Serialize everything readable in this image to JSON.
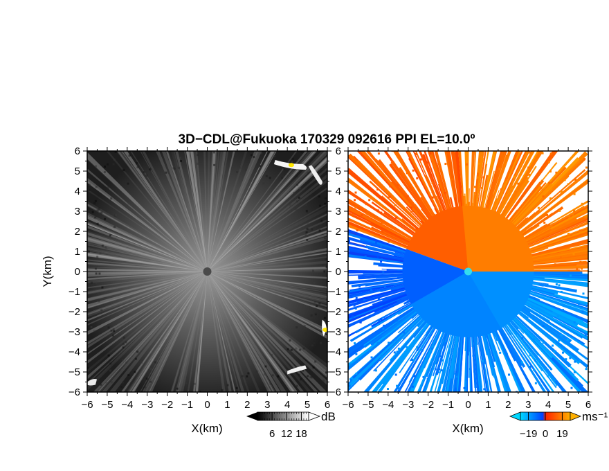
{
  "figure": {
    "title": "3D−CDL@Fukuoka 170329 092616 PPI EL=10.0º"
  },
  "chart_data": [
    {
      "type": "heatmap",
      "quantity": "backscatter intensity",
      "xlabel": "X(km)",
      "ylabel": "Y(km)",
      "xlim": [
        -6,
        6
      ],
      "ylim": [
        -6,
        6
      ],
      "xticks": [
        "−6",
        "−5",
        "−4",
        "−3",
        "−2",
        "−1",
        "0",
        "1",
        "2",
        "3",
        "4",
        "5",
        "6"
      ],
      "yticks": [
        "6",
        "5",
        "4",
        "3",
        "2",
        "1",
        "0",
        "−1",
        "−2",
        "−3",
        "−4",
        "−5",
        "−6"
      ],
      "colorbar": {
        "unit": "dB",
        "range": [
          0,
          21
        ],
        "ticks": [
          6,
          12,
          18
        ],
        "tick_labels": [
          "6",
          "12",
          "18"
        ],
        "colors": [
          "#000000",
          "#ffffff"
        ],
        "extend": "both"
      },
      "features": {
        "radar_center": [
          0,
          0
        ],
        "high_echo_patches": [
          {
            "x": 4.2,
            "y": 5.3,
            "color": "#ffe600"
          },
          {
            "x": 5.9,
            "y": -2.9,
            "color": "#ffe600"
          }
        ]
      }
    },
    {
      "type": "heatmap",
      "quantity": "Doppler velocity",
      "xlabel": "X(km)",
      "ylabel": "",
      "xlim": [
        -6,
        6
      ],
      "ylim": [
        -6,
        6
      ],
      "xticks": [
        "−6",
        "−5",
        "−4",
        "−3",
        "−2",
        "−1",
        "0",
        "1",
        "2",
        "3",
        "4",
        "5",
        "6"
      ],
      "yticks": [
        "6",
        "5",
        "4",
        "3",
        "2",
        "1",
        "0",
        "−1",
        "−2",
        "−3",
        "−4",
        "−5",
        "−6"
      ],
      "colorbar": {
        "unit": "ms⁻¹",
        "range": [
          -28,
          28
        ],
        "ticks": [
          -19,
          0,
          19
        ],
        "tick_labels": [
          "−19",
          "0",
          "19"
        ],
        "colors": [
          "#00d8ff",
          "#0040ff",
          "#ff2000",
          "#ffb000"
        ],
        "extend": "both"
      },
      "features": {
        "radar_center": [
          0,
          0
        ],
        "sectors": [
          {
            "from_deg": 95,
            "to_deg": 160,
            "velocity": 12
          },
          {
            "from_deg": 160,
            "to_deg": 210,
            "velocity": -8
          },
          {
            "from_deg": 210,
            "to_deg": 300,
            "velocity": -14
          },
          {
            "from_deg": 300,
            "to_deg": 360,
            "velocity": -16
          },
          {
            "from_deg": 0,
            "to_deg": 95,
            "velocity": 18
          }
        ]
      }
    }
  ]
}
